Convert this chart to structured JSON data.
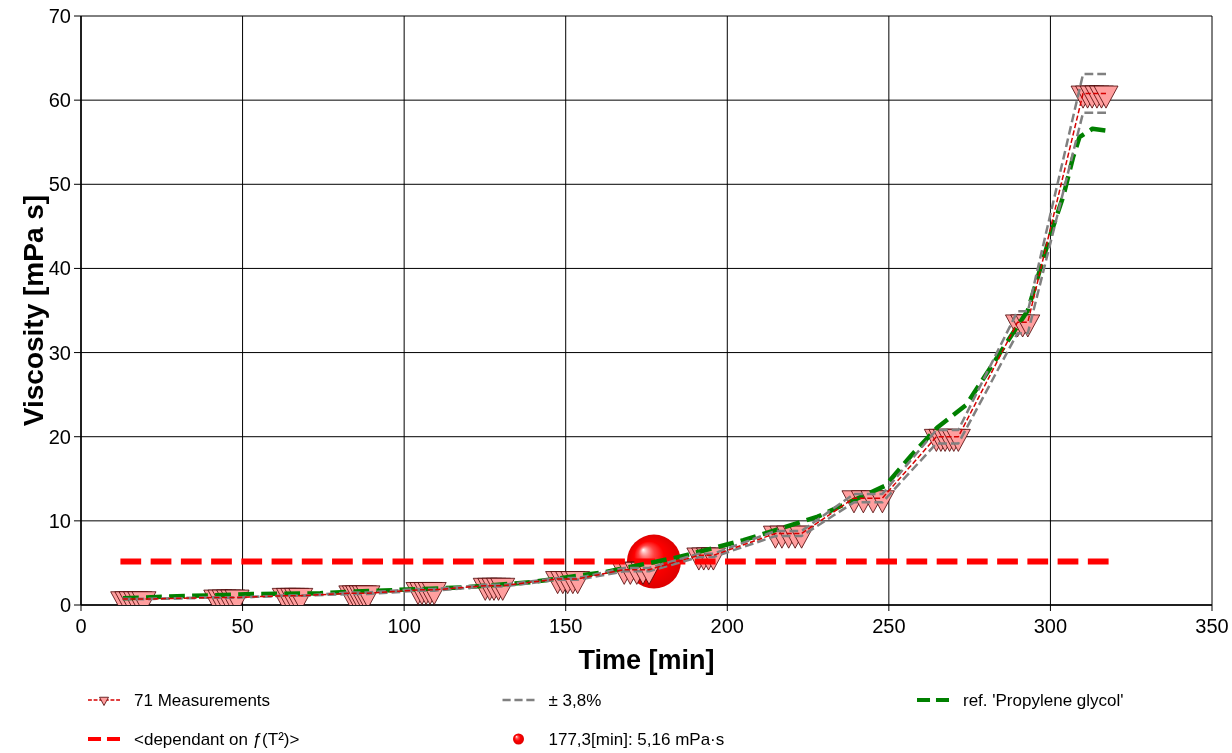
{
  "chart_data": {
    "type": "line",
    "xlabel": "Time [min]",
    "ylabel": "Viscosity [mPa s]",
    "xlim": [
      0,
      350
    ],
    "xticks": [
      0,
      50,
      100,
      150,
      200,
      250,
      300,
      350
    ],
    "ylim": [
      0,
      70
    ],
    "yticks": [
      0,
      10,
      20,
      30,
      40,
      50,
      60,
      70
    ],
    "grid": true,
    "legend": "bottom",
    "series": [
      {
        "name": "71 Measurements",
        "color": "#ff9f9f",
        "marker": "triangle",
        "line_style": "dashed",
        "x": [
          12.9,
          14.2,
          15.5,
          16.9,
          18.2,
          19.5,
          41.7,
          43.0,
          44.3,
          45.7,
          47.0,
          48.3,
          62.9,
          64.2,
          65.5,
          66.7,
          68.0,
          83.5,
          84.6,
          85.6,
          86.7,
          87.7,
          88.8,
          104.3,
          105.5,
          106.8,
          108.0,
          109.3,
          125.1,
          126.5,
          127.8,
          129.2,
          130.5,
          147.5,
          149.1,
          150.6,
          152.2,
          153.7,
          168.1,
          170.0,
          172.0,
          173.9,
          175.8,
          191.2,
          192.7,
          194.2,
          195.7,
          214.9,
          216.9,
          219.0,
          221.0,
          223.0,
          239.2,
          242.1,
          245.1,
          248.0,
          264.7,
          266.1,
          267.4,
          268.8,
          270.1,
          271.5,
          289.8,
          291.4,
          293.0,
          310.1,
          311.5,
          312.9,
          314.4,
          315.8,
          317.2
        ],
        "values": [
          0.7,
          0.7,
          0.7,
          0.7,
          0.7,
          0.7,
          0.9,
          0.9,
          0.9,
          0.9,
          0.9,
          0.9,
          1.1,
          1.1,
          1.1,
          1.1,
          1.1,
          1.4,
          1.4,
          1.4,
          1.4,
          1.4,
          1.4,
          1.8,
          1.8,
          1.8,
          1.8,
          1.8,
          2.3,
          2.3,
          2.3,
          2.3,
          2.3,
          3.1,
          3.1,
          3.1,
          3.1,
          3.1,
          4.2,
          4.2,
          4.2,
          4.2,
          4.2,
          5.9,
          5.9,
          5.9,
          5.9,
          8.5,
          8.5,
          8.5,
          8.5,
          8.5,
          12.7,
          12.7,
          12.7,
          12.7,
          20.0,
          20.0,
          20.0,
          20.0,
          20.0,
          20.0,
          33.6,
          33.6,
          33.6,
          60.8,
          60.8,
          60.8,
          60.8,
          60.8,
          60.8
        ]
      },
      {
        "name": "± 3,8%",
        "color": "#808080",
        "marker": "none",
        "line_style": "dashed",
        "x": [
          12.9,
          19.5,
          41.7,
          48.3,
          62.9,
          68.0,
          83.5,
          88.8,
          104.3,
          109.3,
          125.1,
          130.5,
          147.5,
          153.7,
          168.1,
          175.8,
          191.2,
          195.7,
          214.9,
          223.0,
          239.2,
          248.0,
          264.7,
          271.5,
          289.8,
          293.0,
          310.1,
          317.2
        ],
        "values": [
          0.7,
          0.7,
          0.9,
          0.9,
          1.1,
          1.1,
          1.5,
          1.5,
          1.9,
          1.9,
          2.4,
          2.4,
          3.2,
          3.2,
          4.4,
          4.4,
          6.1,
          6.1,
          8.8,
          8.8,
          13.2,
          13.2,
          20.8,
          20.8,
          34.9,
          34.9,
          63.1,
          63.1
        ]
      },
      {
        "color": "#808080",
        "marker": "none",
        "line_style": "dashed",
        "x": [
          12.9,
          19.5,
          41.7,
          48.3,
          62.9,
          68.0,
          83.5,
          88.8,
          104.3,
          109.3,
          125.1,
          130.5,
          147.5,
          153.7,
          168.1,
          175.8,
          191.2,
          195.7,
          214.9,
          223.0,
          239.2,
          248.0,
          264.7,
          271.5,
          289.8,
          293.0,
          310.1,
          317.2
        ],
        "values": [
          0.7,
          0.7,
          0.9,
          0.9,
          1.1,
          1.1,
          1.3,
          1.3,
          1.7,
          1.7,
          2.2,
          2.2,
          3.0,
          3.0,
          4.0,
          4.0,
          5.7,
          5.7,
          8.2,
          8.2,
          12.2,
          12.2,
          19.2,
          19.2,
          32.3,
          32.3,
          58.5,
          58.5
        ]
      },
      {
        "name": "ref. 'Propylene glycol'",
        "color": "#008000",
        "marker": "none",
        "line_style": "dashed",
        "x": [
          13,
          27,
          53,
          74,
          85,
          119,
          139,
          162,
          185,
          205,
          228,
          249,
          257,
          265,
          274,
          287,
          293,
          300,
          304,
          307,
          309,
          313,
          317
        ],
        "values": [
          0.8,
          1.0,
          1.3,
          1.4,
          1.6,
          2.1,
          2.7,
          3.9,
          5.7,
          7.7,
          10.5,
          14.2,
          17.8,
          21.1,
          23.8,
          31.5,
          35.0,
          44.0,
          48.6,
          53.2,
          55.6,
          56.6,
          56.4
        ]
      },
      {
        "name": "<dependant on ƒ(T²)>",
        "color": "#ff0000",
        "marker": "none",
        "line_style": "dashed",
        "x": [
          12.2,
          318
        ],
        "values": [
          5.16,
          5.16
        ]
      },
      {
        "name": "177,3[min]: 5,16 mPa·s",
        "type": "scatter",
        "color": "#ff0000",
        "marker": "circle",
        "x": [
          177.3
        ],
        "values": [
          5.16
        ]
      }
    ]
  }
}
